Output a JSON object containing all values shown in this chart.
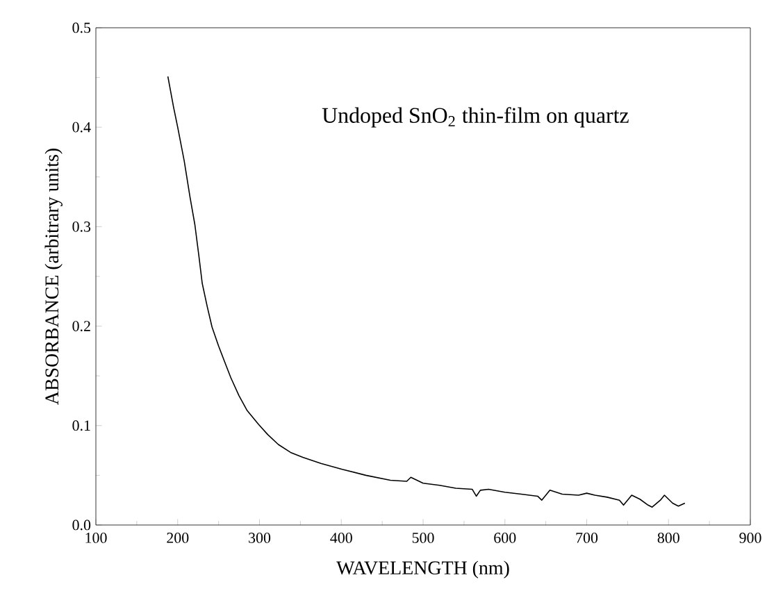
{
  "chart_data": {
    "type": "line",
    "xlabel": "WAVELENGTH (nm)",
    "ylabel": "ABSORBANCE (arbitrary units)",
    "annotations": [
      "Undoped SnO$_{2}$ thin-film on quartz"
    ],
    "xlim": [
      100,
      900
    ],
    "ylim": [
      0,
      0.5
    ],
    "xticks": [
      100,
      200,
      300,
      400,
      500,
      600,
      700,
      800,
      900
    ],
    "yticks": [
      {
        "value": 0,
        "label": "0.0"
      },
      0.1,
      0.2,
      0.3,
      0.4,
      0.5
    ],
    "grid": false,
    "marker": "none",
    "line_style": "solid",
    "series": [
      {
        "color": "#000000",
        "x": [
          188,
          195,
          200,
          208,
          215,
          221,
          226,
          230,
          236,
          242,
          250,
          257,
          265,
          275,
          285,
          299,
          310,
          323,
          338,
          353,
          375,
          401,
          430,
          460,
          480,
          485,
          500,
          520,
          540,
          560,
          565,
          570,
          580,
          600,
          620,
          640,
          645,
          655,
          670,
          690,
          700,
          710,
          725,
          740,
          745,
          755,
          765,
          775,
          780,
          790,
          795,
          805,
          812,
          820
        ],
        "values": [
          0.451,
          0.42,
          0.4,
          0.366,
          0.33,
          0.302,
          0.27,
          0.243,
          0.22,
          0.199,
          0.18,
          0.165,
          0.148,
          0.13,
          0.115,
          0.101,
          0.091,
          0.081,
          0.073,
          0.068,
          0.062,
          0.056,
          0.05,
          0.045,
          0.044,
          0.048,
          0.042,
          0.04,
          0.037,
          0.036,
          0.029,
          0.035,
          0.036,
          0.033,
          0.031,
          0.029,
          0.025,
          0.035,
          0.031,
          0.03,
          0.032,
          0.03,
          0.028,
          0.025,
          0.02,
          0.03,
          0.026,
          0.02,
          0.018,
          0.025,
          0.03,
          0.022,
          0.019,
          0.022
        ]
      }
    ]
  }
}
